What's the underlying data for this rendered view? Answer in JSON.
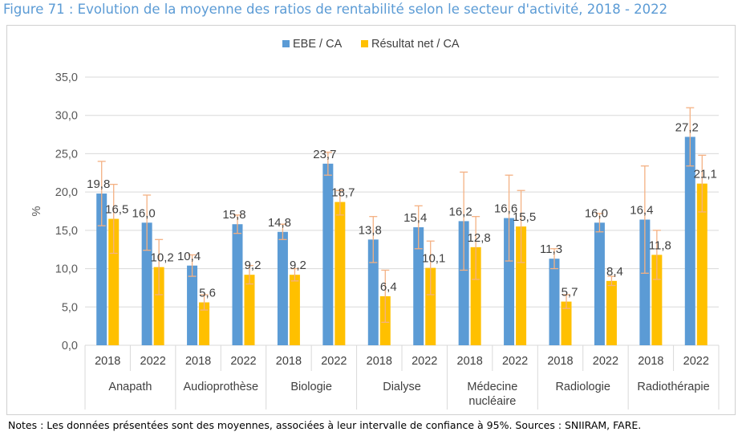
{
  "title": "Figure 71 : Evolution de la moyenne des ratios de rentabilité selon le secteur d'activité, 2018 - 2022",
  "notes": "Notes : Les données présentées sont des moyennes, associées à leur intervalle de confiance à 95%. Sources : SNIIRAM, FARE.",
  "colors": {
    "ebe": "#5b9bd5",
    "rn": "#ffc000",
    "error": "#f4b183",
    "grid": "#d9d9d9",
    "axis": "#595959"
  },
  "chart_data": {
    "type": "bar",
    "ylabel": "%",
    "ylim": [
      0,
      35
    ],
    "yticks": [
      "0,0",
      "5,0",
      "10,0",
      "15,0",
      "20,0",
      "25,0",
      "30,0",
      "35,0"
    ],
    "grid": true,
    "legend_position": "top",
    "groups": [
      {
        "label": "Anapath",
        "years": [
          "2018",
          "2022"
        ]
      },
      {
        "label": "Audioprothèse",
        "years": [
          "2018",
          "2022"
        ]
      },
      {
        "label": "Biologie",
        "years": [
          "2018",
          "2022"
        ]
      },
      {
        "label": "Dialyse",
        "years": [
          "2018",
          "2022"
        ]
      },
      {
        "label": "Médecine nucléaire",
        "years": [
          "2018",
          "2022"
        ]
      },
      {
        "label": "Radiologie",
        "years": [
          "2018",
          "2022"
        ]
      },
      {
        "label": "Radiothérapie",
        "years": [
          "2018",
          "2022"
        ]
      }
    ],
    "series": [
      {
        "name": "EBE / CA",
        "values": [
          19.8,
          16.0,
          10.4,
          15.8,
          14.8,
          23.7,
          13.8,
          15.4,
          16.2,
          16.6,
          11.3,
          16.0,
          16.4,
          27.2
        ],
        "labels": [
          "19,8",
          "16,0",
          "10,4",
          "15,8",
          "14,8",
          "23,7",
          "13,8",
          "15,4",
          "16,2",
          "16,6",
          "11,3",
          "16,0",
          "16,4",
          "27,2"
        ],
        "ci_low": [
          15.6,
          12.4,
          9.0,
          14.6,
          13.8,
          22.2,
          10.8,
          12.6,
          9.8,
          11.0,
          10.0,
          14.8,
          9.4,
          23.4
        ],
        "ci_high": [
          24.0,
          19.6,
          11.8,
          17.0,
          15.8,
          25.2,
          16.8,
          18.2,
          22.6,
          22.2,
          12.6,
          17.2,
          23.4,
          31.0
        ]
      },
      {
        "name": "Résultat net / CA",
        "values": [
          16.5,
          10.2,
          5.6,
          9.2,
          9.2,
          18.7,
          6.4,
          10.1,
          12.8,
          15.5,
          5.7,
          8.4,
          11.8,
          21.1
        ],
        "labels": [
          "16,5",
          "10,2",
          "5,6",
          "9,2",
          "9,2",
          "18,7",
          "6,4",
          "10,1",
          "12,8",
          "15,5",
          "5,7",
          "8,4",
          "11,8",
          "21,1"
        ],
        "ci_low": [
          12.0,
          6.6,
          4.6,
          8.0,
          8.4,
          17.0,
          3.0,
          6.6,
          8.6,
          10.8,
          4.8,
          7.8,
          8.6,
          17.4
        ],
        "ci_high": [
          21.0,
          13.8,
          6.6,
          10.4,
          10.0,
          20.2,
          9.8,
          13.6,
          16.8,
          20.2,
          6.6,
          9.0,
          15.0,
          24.8
        ]
      }
    ]
  }
}
